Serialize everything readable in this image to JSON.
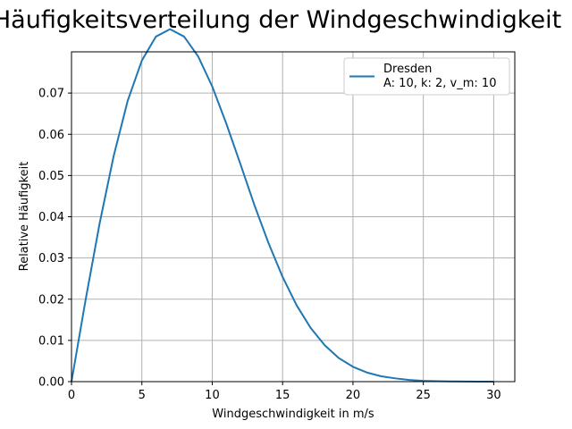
{
  "chart_data": {
    "type": "line",
    "title": "Häufigkeitsverteilung der Windgeschwindigkeit",
    "xlabel": "Windgeschwindigkeit in m/s",
    "ylabel": "Relative Häufigkeit",
    "xlim": [
      0,
      31.5
    ],
    "ylim": [
      0,
      0.08
    ],
    "xticks": [
      0,
      5,
      10,
      15,
      20,
      25,
      30
    ],
    "xtick_labels": [
      "0",
      "5",
      "10",
      "15",
      "20",
      "25",
      "30"
    ],
    "yticks": [
      0,
      0.01,
      0.02,
      0.03,
      0.04,
      0.05,
      0.06,
      0.07
    ],
    "ytick_labels": [
      "0.00",
      "0.01",
      "0.02",
      "0.03",
      "0.04",
      "0.05",
      "0.06",
      "0.07"
    ],
    "grid": true,
    "legend_position": "top-right",
    "series": [
      {
        "name": "Dresden",
        "legend_detail": "A: 10, k: 2, v_m: 10",
        "color": "#1f77b4",
        "x": [
          0,
          1,
          2,
          3,
          4,
          5,
          6,
          7,
          8,
          9,
          10,
          11,
          12,
          13,
          14,
          15,
          16,
          17,
          18,
          19,
          20,
          21,
          22,
          23,
          24,
          25,
          26,
          27,
          28,
          29,
          30
        ],
        "y": [
          0.0,
          0.0198,
          0.0384,
          0.0548,
          0.0682,
          0.0779,
          0.0837,
          0.0855,
          0.0837,
          0.0789,
          0.0716,
          0.0626,
          0.0528,
          0.0428,
          0.0336,
          0.0254,
          0.0185,
          0.013,
          0.0088,
          0.0057,
          0.0036,
          0.0022,
          0.0013,
          0.0008,
          0.0004,
          0.0002,
          0.0001,
          5e-05,
          3e-05,
          1e-05,
          0.0
        ]
      }
    ]
  }
}
